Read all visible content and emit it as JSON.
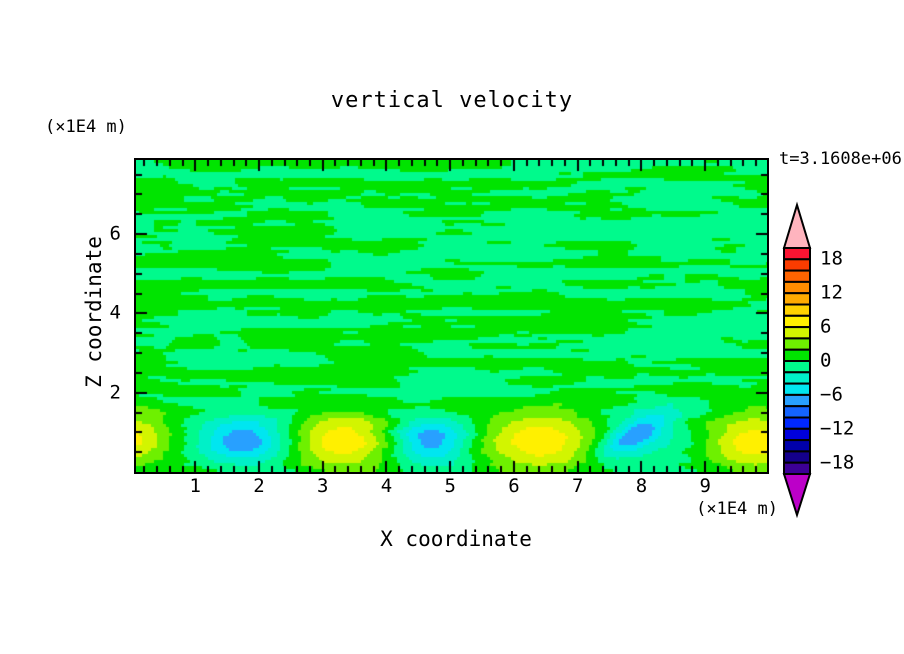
{
  "figure": {
    "title": "vertical velocity",
    "timestamp_label": "t=3.1608e+06",
    "background_color": "#ffffff",
    "frame_color": "#000000"
  },
  "axes": {
    "x": {
      "title": "X coordinate",
      "unit_label": "(×1E4 m)",
      "range": [
        0.07,
        9.97
      ],
      "major_ticks": [
        1,
        2,
        3,
        4,
        5,
        6,
        7,
        8,
        9
      ],
      "major_tick_labels": [
        "1",
        "2",
        "3",
        "4",
        "5",
        "6",
        "7",
        "8",
        "9"
      ],
      "minor_tick_step": 0.2
    },
    "z": {
      "title": "Z coordinate",
      "unit_label": "(×1E4 m)",
      "range": [
        0,
        7.87
      ],
      "major_ticks": [
        2,
        4,
        6
      ],
      "major_tick_labels": [
        "2",
        "4",
        "6"
      ],
      "minor_tick_step": 0.5
    }
  },
  "colorbar": {
    "value_max": 20,
    "value_min": -20,
    "level_step": 2,
    "boundary_labels": [
      {
        "value": 18,
        "label": "18"
      },
      {
        "value": 12,
        "label": "12"
      },
      {
        "value": 6,
        "label": "6"
      },
      {
        "value": 0,
        "label": "0"
      },
      {
        "value": -6,
        "label": "−6"
      },
      {
        "value": -12,
        "label": "−12"
      },
      {
        "value": -18,
        "label": "−18"
      }
    ],
    "colors_top_to_bottom": [
      "#fa1432",
      "#fa3c00",
      "#ff6400",
      "#ff8c00",
      "#ffaa00",
      "#ffd200",
      "#fff000",
      "#d2f500",
      "#6ef000",
      "#00e400",
      "#00fa8c",
      "#00f0c8",
      "#00e6f0",
      "#28a0ff",
      "#1464ff",
      "#0028ff",
      "#0000dc",
      "#0000aa",
      "#14008c",
      "#3c0096"
    ],
    "over_color": "#ffb4be",
    "under_color": "#bc00c8"
  },
  "chart_data": {
    "type": "filled_contour",
    "title": "vertical velocity",
    "xlabel": "X coordinate",
    "ylabel": "Z coordinate",
    "x_unit": "×1E4 m",
    "y_unit": "×1E4 m",
    "time_annotation": "t=3.1608e+06",
    "x_range": [
      0.07,
      9.97
    ],
    "z_range": [
      0,
      7.87
    ],
    "contour_level_step": 2,
    "contour_levels": [
      -20,
      -18,
      -16,
      -14,
      -12,
      -10,
      -8,
      -6,
      -4,
      -2,
      0,
      2,
      4,
      6,
      8,
      10,
      12,
      14,
      16,
      18,
      20
    ],
    "visible_value_range_in_field": [
      -9,
      8
    ],
    "field_summary": "Mostly near-zero streaky turbulence (bands -2..0 and 0..2) above z≈2; a row of alternating convective cells along the bottom: yellow updraft cores (~+7) near x≈0, 3.3, 6.5, 9.8 and cyan/blue downdraft cores (~-8) near x≈1.8, 4.7, 7.9.",
    "cells": [
      {
        "type": "updraft",
        "x": -0.15,
        "z": 0.85,
        "peak": 7.4,
        "sigma_x": 0.55,
        "sigma_z": 0.5,
        "rot_deg": 0
      },
      {
        "type": "updraft",
        "x": 3.32,
        "z": 0.8,
        "peak": 7.6,
        "sigma_x": 0.62,
        "sigma_z": 0.52,
        "rot_deg": 0
      },
      {
        "type": "updraft",
        "x": 6.45,
        "z": 0.8,
        "peak": 7.6,
        "sigma_x": 0.7,
        "sigma_z": 0.55,
        "rot_deg": 0
      },
      {
        "type": "updraft",
        "x": 9.8,
        "z": 0.75,
        "peak": 7.5,
        "sigma_x": 0.55,
        "sigma_z": 0.5,
        "rot_deg": 0
      },
      {
        "type": "downdraft",
        "x": 1.78,
        "z": 0.8,
        "peak": -7.8,
        "sigma_x": 0.5,
        "sigma_z": 0.42,
        "rot_deg": 0
      },
      {
        "type": "downdraft",
        "x": 4.68,
        "z": 0.78,
        "peak": -7.9,
        "sigma_x": 0.45,
        "sigma_z": 0.42,
        "rot_deg": 0
      },
      {
        "type": "downdraft",
        "x": 7.9,
        "z": 0.95,
        "peak": -5.8,
        "sigma_x": 0.55,
        "sigma_z": 0.2,
        "rot_deg": 47
      },
      {
        "type": "downdraft",
        "x": 7.88,
        "z": 0.8,
        "peak": -3.2,
        "sigma_x": 0.6,
        "sigma_z": 0.5,
        "rot_deg": 0
      }
    ],
    "turbulence_noise": {
      "amplitude": 1.05,
      "octaves": [
        [
          0.8,
          4.0,
          2.2,
          0.0,
          0.0
        ],
        [
          1.7,
          8.0,
          1.2,
          11.3,
          5.7
        ],
        [
          3.4,
          16.0,
          0.65,
          23.1,
          13.9
        ]
      ]
    }
  }
}
